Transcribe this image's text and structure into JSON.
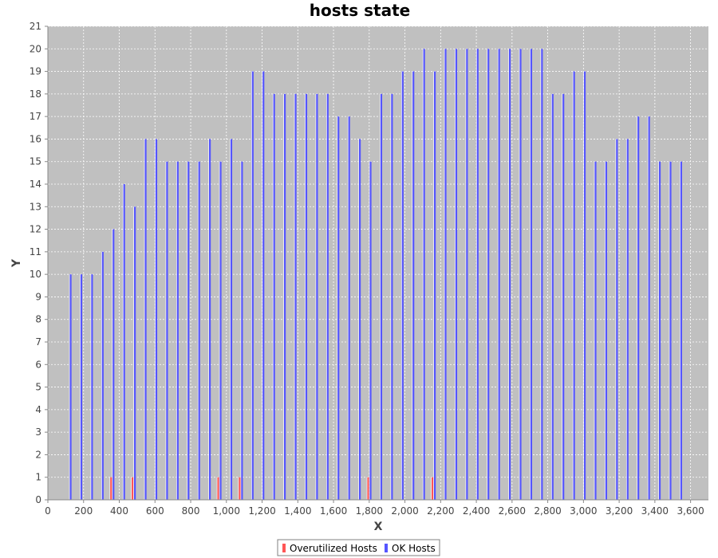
{
  "chart_data": {
    "type": "bar",
    "title": "hosts state",
    "xlabel": "X",
    "ylabel": "Y",
    "xlim": [
      0,
      3700
    ],
    "ylim": [
      0,
      21
    ],
    "x_ticks": [
      "0",
      "200",
      "400",
      "600",
      "800",
      "1,000",
      "1,200",
      "1,400",
      "1,600",
      "1,800",
      "2,000",
      "2,200",
      "2,400",
      "2,600",
      "2,800",
      "3,000",
      "3,200",
      "3,400",
      "3,600"
    ],
    "y_ticks": [
      "0",
      "1",
      "2",
      "3",
      "4",
      "5",
      "6",
      "7",
      "8",
      "9",
      "10",
      "11",
      "12",
      "13",
      "14",
      "15",
      "16",
      "17",
      "18",
      "19",
      "20",
      "21"
    ],
    "grid": true,
    "legend_position": "bottom-center",
    "plot_background": "#c0c0c0",
    "series": [
      {
        "name": "Overutilized Hosts",
        "color": "#ff5555",
        "x": [
          360,
          480,
          960,
          1080,
          1800,
          2160
        ],
        "values": [
          1,
          1,
          1,
          1,
          1,
          1
        ]
      },
      {
        "name": "OK Hosts",
        "color": "#5555ff",
        "x": [
          120,
          180,
          240,
          300,
          360,
          420,
          480,
          540,
          600,
          660,
          720,
          780,
          840,
          900,
          960,
          1020,
          1080,
          1140,
          1200,
          1260,
          1320,
          1380,
          1440,
          1500,
          1560,
          1620,
          1680,
          1740,
          1800,
          1860,
          1920,
          1980,
          2040,
          2100,
          2160,
          2220,
          2280,
          2340,
          2400,
          2460,
          2520,
          2580,
          2640,
          2700,
          2760,
          2820,
          2880,
          2940,
          3000,
          3060,
          3120,
          3180,
          3240,
          3300,
          3360,
          3420,
          3480,
          3540
        ],
        "values": [
          10,
          10,
          10,
          11,
          12,
          14,
          13,
          16,
          16,
          15,
          15,
          15,
          15,
          16,
          15,
          16,
          15,
          19,
          19,
          18,
          18,
          18,
          18,
          18,
          18,
          17,
          17,
          16,
          15,
          18,
          18,
          19,
          19,
          20,
          19,
          20,
          20,
          20,
          20,
          20,
          20,
          20,
          20,
          20,
          20,
          18,
          18,
          19,
          19,
          15,
          15,
          16,
          16,
          17,
          17,
          15,
          15,
          15
        ]
      }
    ]
  }
}
